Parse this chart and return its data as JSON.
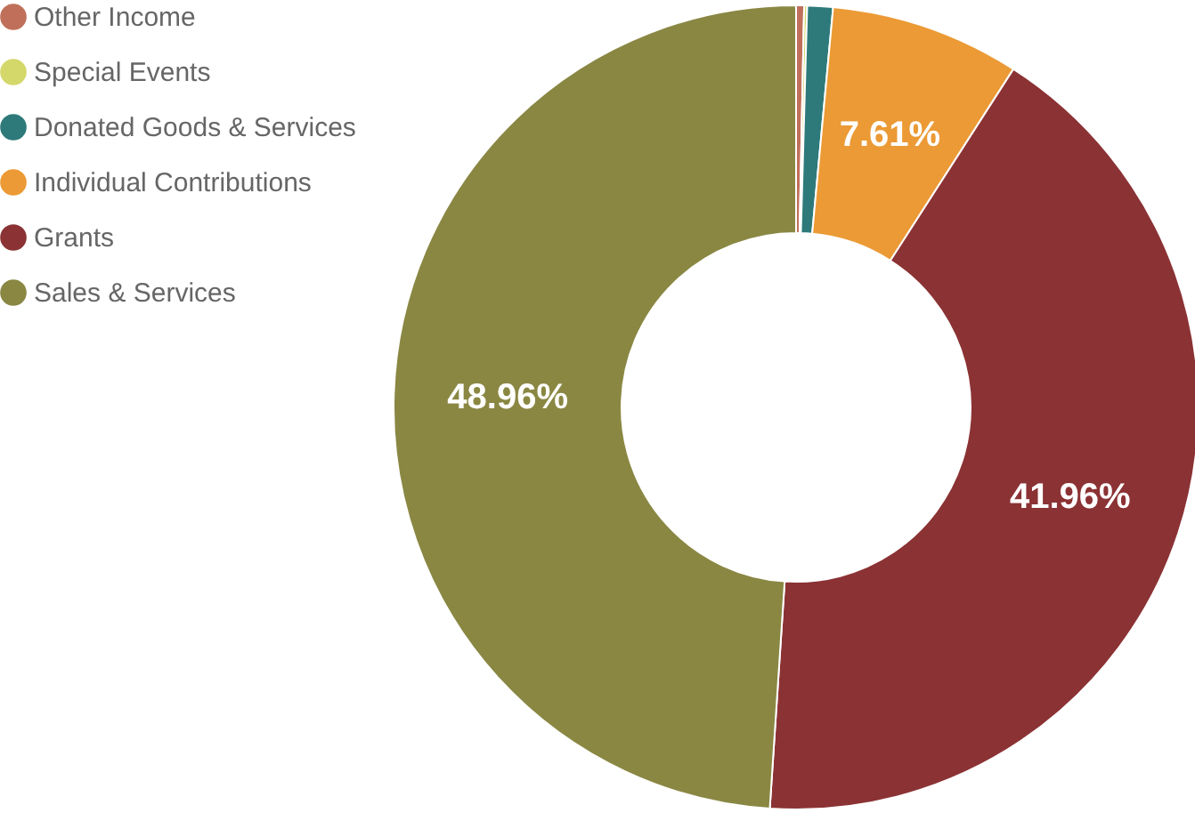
{
  "chart_data": {
    "type": "donut",
    "categories": [
      "Other Income",
      "Special Events",
      "Donated Goods & Services",
      "Individual Contributions",
      "Grants",
      "Sales & Services"
    ],
    "values": [
      0.32,
      0.12,
      1.03,
      7.61,
      41.96,
      48.96
    ],
    "colors": [
      "#c0705a",
      "#d4d86a",
      "#2e7a7a",
      "#eb9a35",
      "#8b3234",
      "#8a8743"
    ],
    "value_labels": [
      null,
      null,
      null,
      "7.61%",
      "41.96%",
      "48.96%"
    ],
    "legend": "top left"
  }
}
